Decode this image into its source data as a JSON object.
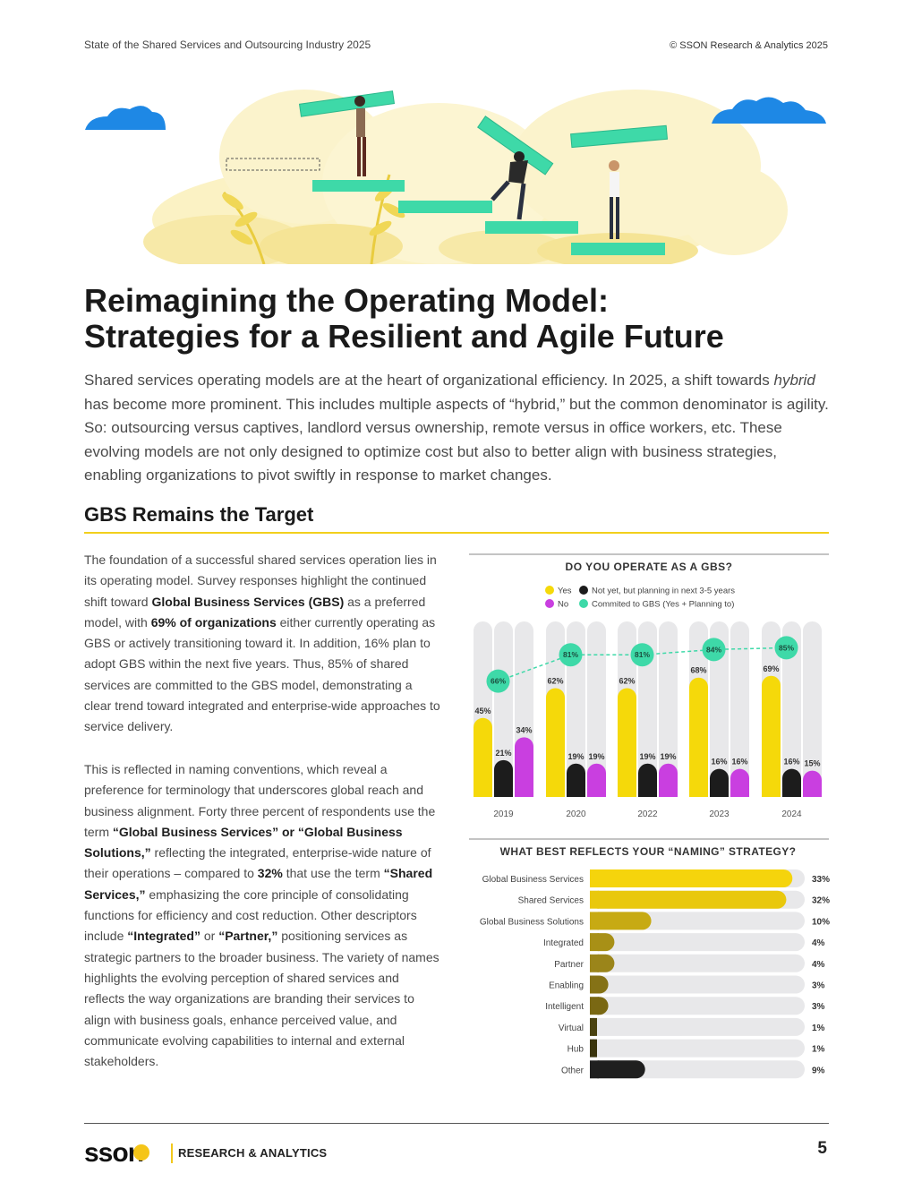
{
  "header": {
    "left": "State of the Shared Services and Outsourcing Industry 2025",
    "right": "© SSON Research & Analytics 2025"
  },
  "title": {
    "line1": "Reimagining the Operating Model:",
    "line2": "Strategies for a Resilient and Agile Future"
  },
  "intro": {
    "part1": "Shared services operating models are at the heart of organizational efficiency. In 2025, a shift towards ",
    "italic": "hybrid",
    "part2": " has become more prominent. This includes multiple aspects of “hybrid,” but the common denominator is agility. So: outsourcing versus captives, landlord versus ownership, remote versus in office workers, etc. These evolving models are not only designed to optimize cost but also to better align with business strategies, enabling organizations to pivot swiftly in response to market changes."
  },
  "section_heading": "GBS Remains the Target",
  "para1": {
    "t1": "The foundation of a successful shared services operation lies in its operating model. Survey responses highlight the continued shift toward ",
    "b1": "Global Business Services (GBS)",
    "t2": " as a preferred model, with ",
    "b2": "69% of organizations",
    "t3": " either currently operating as GBS or actively transitioning toward it. In addition, 16% plan to adopt GBS within the next five years. Thus, 85% of shared services are committed to the GBS model, demonstrating a clear trend toward integrated and enterprise-wide approaches to service delivery."
  },
  "para2": {
    "t1": "This is reflected in naming conventions, which reveal a preference for terminology that underscores global reach and business alignment. Forty three percent of respondents use the term ",
    "b1": "“Global Business Services” or “Global Business Solutions,”",
    "t2": " reflecting the integrated, enterprise-wide nature of their operations – compared to ",
    "b2": "32%",
    "t3": " that use the term ",
    "b3": "“Shared Services,”",
    "t4": " emphasizing the core principle of consolidating functions for efficiency and cost reduction. Other descriptors include ",
    "b4": "“Integrated”",
    "t5": " or ",
    "b5": "“Partner,”",
    "t6": " positioning services as strategic partners to the broader business. The variety of names highlights the evolving perception of shared services and reflects the way organizations are branding their services to align with business goals, enhance perceived value, and communicate evolving capabilities to internal and external stakeholders."
  },
  "chart_data": [
    {
      "type": "bar",
      "title": "DO YOU OPERATE AS A GBS?",
      "categories": [
        "2019",
        "2020",
        "2022",
        "2023",
        "2024"
      ],
      "series": [
        {
          "name": "Yes",
          "color": "#f5d90a",
          "values": [
            45,
            62,
            62,
            68,
            69
          ],
          "labels": [
            "45%",
            "62%",
            "62%",
            "68%",
            "69%"
          ]
        },
        {
          "name": "Not yet, but planning in next 3-5 years",
          "color": "#1c1c1c",
          "values": [
            21,
            19,
            19,
            16,
            16
          ],
          "labels": [
            "21%",
            "19%",
            "19%",
            "16%",
            "16%"
          ]
        },
        {
          "name": "No",
          "color": "#c93fe0",
          "values": [
            34,
            19,
            19,
            16,
            15
          ],
          "labels": [
            "34%",
            "19%",
            "19%",
            "16%",
            "15%"
          ]
        },
        {
          "name": "Commited to GBS (Yes + Planning to)",
          "type": "line",
          "color": "#3ed9a8",
          "values": [
            66,
            81,
            81,
            84,
            85
          ],
          "labels": [
            "66%",
            "81%",
            "81%",
            "84%",
            "85%"
          ]
        }
      ],
      "ylim": [
        0,
        100
      ],
      "legend_position": "top"
    },
    {
      "type": "bar",
      "orientation": "horizontal",
      "title": "WHAT BEST REFLECTS YOUR “NAMING” STRATEGY?",
      "categories": [
        "Global Business Services",
        "Shared Services",
        "Global Business Solutions",
        "Integrated",
        "Partner",
        "Enabling",
        "Intelligent",
        "Virtual",
        "Hub",
        "Other"
      ],
      "values": [
        33,
        32,
        10,
        4,
        4,
        3,
        3,
        1,
        1,
        9
      ],
      "labels": [
        "33%",
        "32%",
        "10%",
        "4%",
        "4%",
        "3%",
        "3%",
        "1%",
        "1%",
        "9%"
      ],
      "colors": [
        "#f5d40c",
        "#e9c80d",
        "#c7aa13",
        "#a89016",
        "#9b851a",
        "#857216",
        "#7a6813",
        "#4a4210",
        "#3a340d",
        "#1f1f1f"
      ],
      "xlim": [
        0,
        35
      ]
    }
  ],
  "footer": {
    "logo_word": "sson",
    "brand": "RESEARCH & ANALYTICS",
    "page_number": "5"
  },
  "colors": {
    "accent_yellow": "#f2cf1c",
    "teal": "#3ed9a8",
    "magenta": "#c93fe0"
  }
}
